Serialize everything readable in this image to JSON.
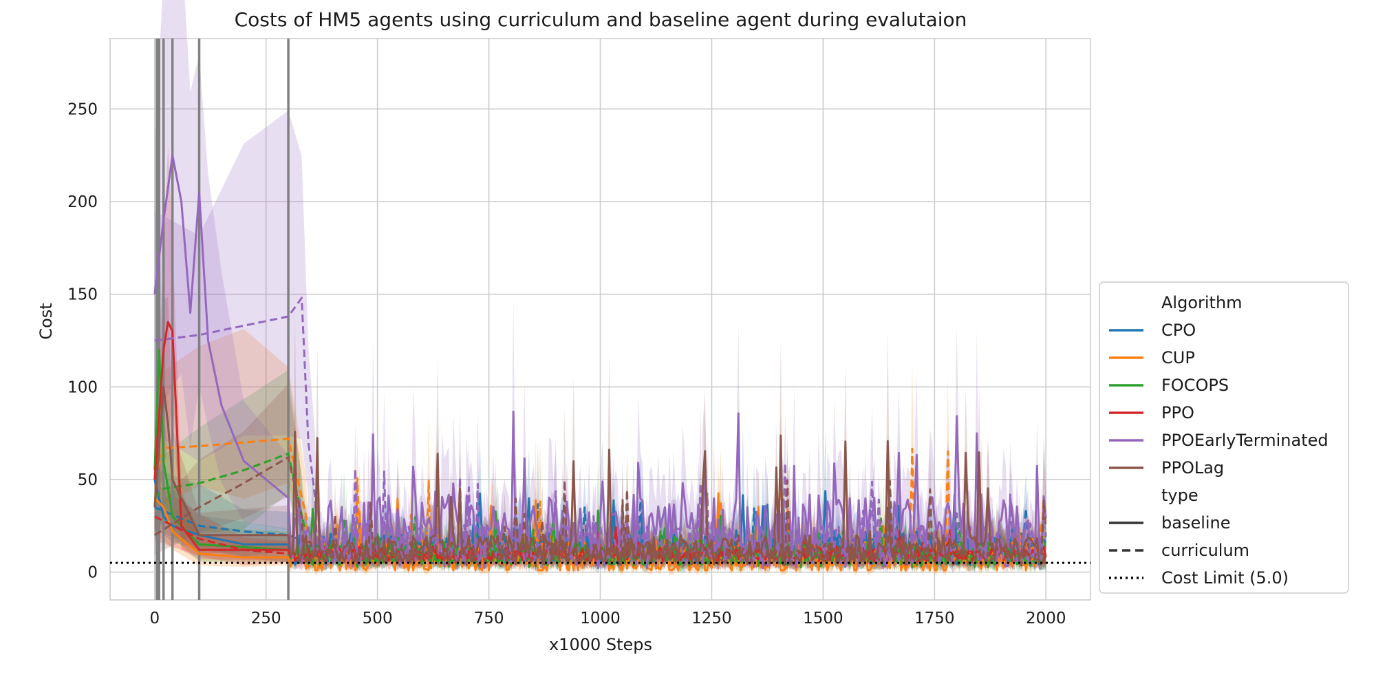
{
  "chart_data": {
    "type": "line",
    "title": "Costs of HM5 agents using curriculum and baseline agent during evalutaion",
    "xlabel": "x1000 Steps",
    "ylabel": "Cost",
    "xlim": [
      -100,
      2100
    ],
    "ylim": [
      -15,
      288
    ],
    "xticks": [
      "0",
      "250",
      "500",
      "750",
      "1000",
      "1250",
      "1500",
      "1750",
      "2000"
    ],
    "yticks": [
      "0",
      "50",
      "100",
      "150",
      "200",
      "250"
    ],
    "grid": true,
    "legend_position": "right",
    "legend_titles": {
      "algorithm": "Algorithm",
      "type": "type"
    },
    "vertical_lines_x": [
      5,
      10,
      20,
      40,
      100,
      300
    ],
    "cost_limit": {
      "label": "Cost Limit (5.0)",
      "value": 5.0
    },
    "type_styles": [
      {
        "name": "baseline",
        "dash": "solid"
      },
      {
        "name": "curriculum",
        "dash": "dashed"
      }
    ],
    "x_range": [
      0,
      2000
    ],
    "series": [
      {
        "name": "CPO",
        "color": "#1f77b4",
        "baseline": {
          "early": [
            [
              0,
              50
            ],
            [
              20,
              30
            ],
            [
              40,
              25
            ],
            [
              100,
              20
            ],
            [
              200,
              15
            ],
            [
              300,
              15
            ]
          ],
          "mean": 13,
          "spread": 12,
          "peak": 45
        },
        "curriculum": {
          "early": [
            [
              0,
              35
            ],
            [
              100,
              25
            ],
            [
              200,
              22
            ],
            [
              300,
              20
            ],
            [
              350,
              15
            ]
          ],
          "mean": 12,
          "spread": 10,
          "peak": 40
        }
      },
      {
        "name": "CUP",
        "color": "#ff7f0e",
        "baseline": {
          "early": [
            [
              0,
              40
            ],
            [
              20,
              35
            ],
            [
              40,
              22
            ],
            [
              100,
              10
            ],
            [
              200,
              8
            ],
            [
              300,
              8
            ]
          ],
          "mean": 7,
          "spread": 12,
          "peak": 55
        },
        "curriculum": {
          "early": [
            [
              0,
              50
            ],
            [
              20,
              67
            ],
            [
              100,
              68
            ],
            [
              200,
              70
            ],
            [
              300,
              72
            ],
            [
              340,
              30
            ]
          ],
          "mean": 10,
          "spread": 10,
          "peak": 69
        }
      },
      {
        "name": "FOCOPS",
        "color": "#2ca02c",
        "baseline": {
          "early": [
            [
              0,
              55
            ],
            [
              10,
              120
            ],
            [
              20,
              60
            ],
            [
              40,
              30
            ],
            [
              100,
              15
            ],
            [
              300,
              12
            ]
          ],
          "mean": 10,
          "spread": 8,
          "peak": 35
        },
        "curriculum": {
          "early": [
            [
              0,
              40
            ],
            [
              20,
              45
            ],
            [
              100,
              48
            ],
            [
              200,
              55
            ],
            [
              300,
              64
            ],
            [
              340,
              20
            ]
          ],
          "mean": 9,
          "spread": 8,
          "peak": 30
        }
      },
      {
        "name": "PPO",
        "color": "#d62728",
        "baseline": {
          "early": [
            [
              0,
              50
            ],
            [
              20,
              120
            ],
            [
              30,
              135
            ],
            [
              40,
              130
            ],
            [
              60,
              25
            ],
            [
              100,
              12
            ],
            [
              300,
              12
            ]
          ],
          "mean": 10,
          "spread": 5,
          "peak": 25
        },
        "curriculum": {
          "early": [
            [
              0,
              30
            ],
            [
              100,
              18
            ],
            [
              200,
              12
            ],
            [
              300,
              10
            ],
            [
              350,
              9
            ]
          ],
          "mean": 9,
          "spread": 4,
          "peak": 18
        }
      },
      {
        "name": "PPOEarlyTerminated",
        "color": "#9467bd",
        "baseline": {
          "early": [
            [
              0,
              150
            ],
            [
              20,
              190
            ],
            [
              40,
              225
            ],
            [
              60,
              200
            ],
            [
              80,
              140
            ],
            [
              100,
              205
            ],
            [
              120,
              125
            ],
            [
              150,
              90
            ],
            [
              200,
              60
            ],
            [
              300,
              40
            ]
          ],
          "mean": 22,
          "spread": 25,
          "peak": 90
        },
        "curriculum": {
          "early": [
            [
              0,
              125
            ],
            [
              100,
              128
            ],
            [
              200,
              133
            ],
            [
              300,
              138
            ],
            [
              330,
              148
            ],
            [
              345,
              70
            ],
            [
              360,
              40
            ]
          ],
          "mean": 15,
          "spread": 15,
          "peak": 60
        }
      },
      {
        "name": "PPOLag",
        "color": "#8c564b",
        "baseline": {
          "early": [
            [
              0,
              35
            ],
            [
              20,
              100
            ],
            [
              30,
              80
            ],
            [
              40,
              50
            ],
            [
              100,
              20
            ],
            [
              300,
              20
            ]
          ],
          "mean": 12,
          "spread": 10,
          "peak": 78
        },
        "curriculum": {
          "early": [
            [
              0,
              20
            ],
            [
              100,
              35
            ],
            [
              200,
              48
            ],
            [
              300,
              62
            ],
            [
              330,
              30
            ]
          ],
          "mean": 10,
          "spread": 8,
          "peak": 50
        }
      }
    ]
  }
}
